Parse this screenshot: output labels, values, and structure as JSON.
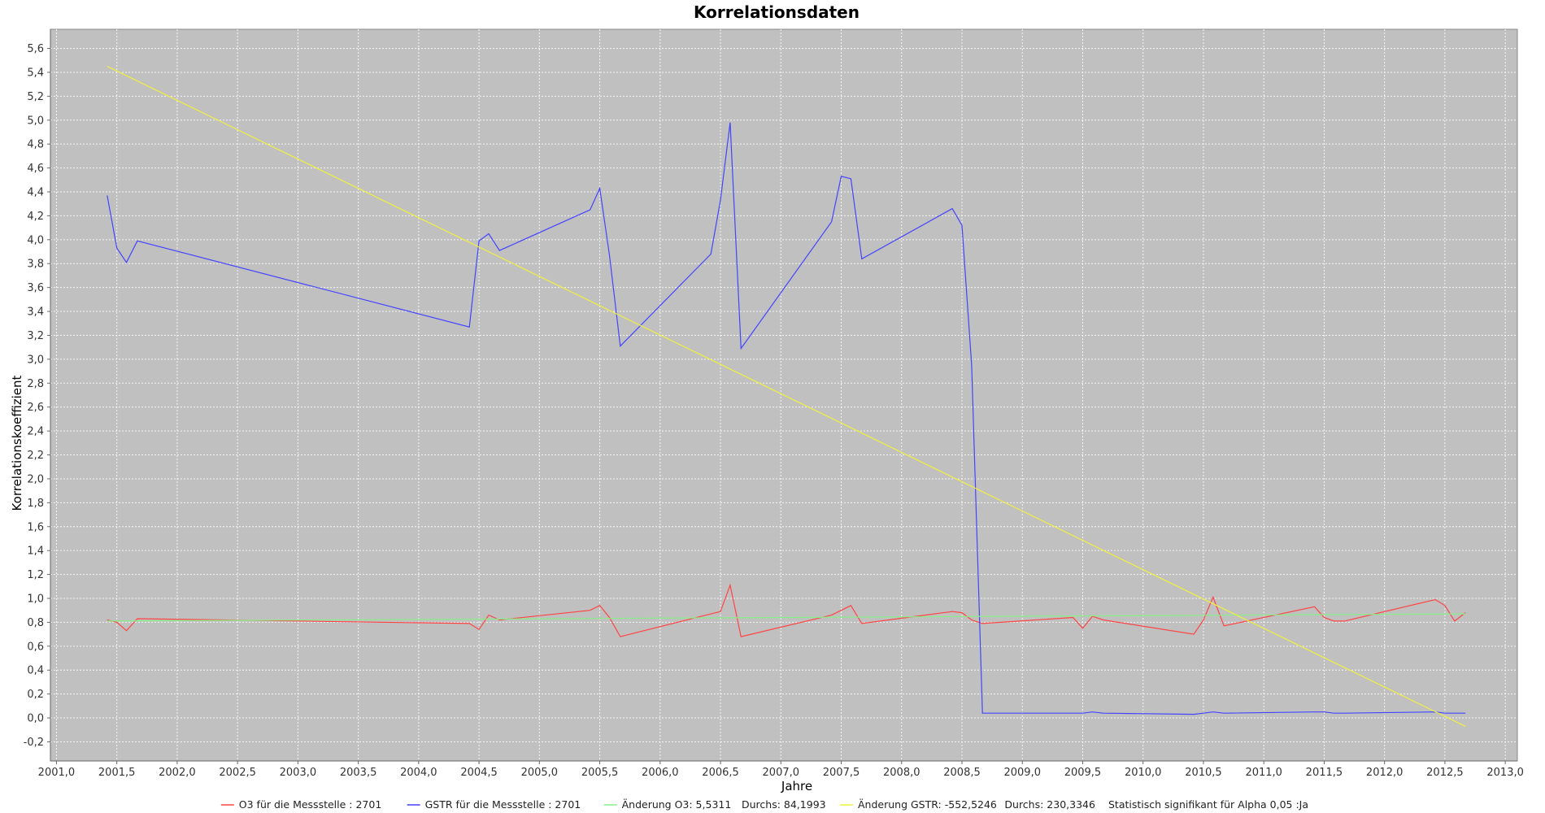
{
  "chart_data": {
    "type": "line",
    "title": "Korrelationsdaten",
    "xlabel": "Jahre",
    "ylabel": "Korrelationskoeffizient",
    "xlim": [
      2000.95,
      2013.1
    ],
    "ylim": [
      -0.36,
      5.76
    ],
    "x_ticks": [
      "2001,0",
      "2001,5",
      "2002,0",
      "2002,5",
      "2003,0",
      "2003,5",
      "2004,0",
      "2004,5",
      "2005,0",
      "2005,5",
      "2006,0",
      "2006,5",
      "2007,0",
      "2007,5",
      "2008,0",
      "2008,5",
      "2009,0",
      "2009,5",
      "2010,0",
      "2010,5",
      "2011,0",
      "2011,5",
      "2012,0",
      "2012,5",
      "2013,0"
    ],
    "y_ticks": [
      "-0,2",
      "0,0",
      "0,2",
      "0,4",
      "0,6",
      "0,8",
      "1,0",
      "1,2",
      "1,4",
      "1,6",
      "1,8",
      "2,0",
      "2,2",
      "2,4",
      "2,6",
      "2,8",
      "3,0",
      "3,2",
      "3,4",
      "3,6",
      "3,8",
      "4,0",
      "4,2",
      "4,4",
      "4,6",
      "4,8",
      "5,0",
      "5,2",
      "5,4",
      "5,6"
    ],
    "grid": true,
    "plot_background": "#c0c0c0",
    "series": [
      {
        "name": "O3 für die Messstelle : 2701",
        "color": "#ff4444",
        "points": [
          [
            2001.42,
            0.82
          ],
          [
            2001.5,
            0.8
          ],
          [
            2001.58,
            0.73
          ],
          [
            2001.67,
            0.83
          ],
          [
            2004.42,
            0.79
          ],
          [
            2004.5,
            0.74
          ],
          [
            2004.58,
            0.86
          ],
          [
            2004.67,
            0.82
          ],
          [
            2005.42,
            0.9
          ],
          [
            2005.5,
            0.94
          ],
          [
            2005.58,
            0.84
          ],
          [
            2005.67,
            0.68
          ],
          [
            2006.42,
            0.87
          ],
          [
            2006.5,
            0.89
          ],
          [
            2006.58,
            1.11
          ],
          [
            2006.67,
            0.68
          ],
          [
            2007.42,
            0.86
          ],
          [
            2007.5,
            0.9
          ],
          [
            2007.58,
            0.94
          ],
          [
            2007.67,
            0.79
          ],
          [
            2008.42,
            0.89
          ],
          [
            2008.5,
            0.88
          ],
          [
            2008.58,
            0.82
          ],
          [
            2008.67,
            0.79
          ],
          [
            2009.42,
            0.84
          ],
          [
            2009.5,
            0.75
          ],
          [
            2009.58,
            0.85
          ],
          [
            2009.67,
            0.82
          ],
          [
            2010.42,
            0.7
          ],
          [
            2010.5,
            0.82
          ],
          [
            2010.58,
            1.01
          ],
          [
            2010.67,
            0.77
          ],
          [
            2011.42,
            0.93
          ],
          [
            2011.5,
            0.84
          ],
          [
            2011.58,
            0.81
          ],
          [
            2011.67,
            0.81
          ],
          [
            2012.42,
            0.99
          ],
          [
            2012.5,
            0.94
          ],
          [
            2012.58,
            0.81
          ],
          [
            2012.67,
            0.88
          ]
        ]
      },
      {
        "name": "GSTR für die Messstelle : 2701",
        "color": "#4444ff",
        "points": [
          [
            2001.42,
            4.37
          ],
          [
            2001.5,
            3.93
          ],
          [
            2001.58,
            3.81
          ],
          [
            2001.67,
            3.99
          ],
          [
            2004.42,
            3.27
          ],
          [
            2004.5,
            3.99
          ],
          [
            2004.58,
            4.05
          ],
          [
            2004.67,
            3.91
          ],
          [
            2005.42,
            4.25
          ],
          [
            2005.5,
            4.43
          ],
          [
            2005.58,
            3.87
          ],
          [
            2005.67,
            3.11
          ],
          [
            2006.42,
            3.88
          ],
          [
            2006.5,
            4.33
          ],
          [
            2006.58,
            4.98
          ],
          [
            2006.67,
            3.09
          ],
          [
            2007.42,
            4.15
          ],
          [
            2007.5,
            4.53
          ],
          [
            2007.58,
            4.51
          ],
          [
            2007.67,
            3.84
          ],
          [
            2008.42,
            4.26
          ],
          [
            2008.5,
            4.12
          ],
          [
            2008.58,
            2.95
          ],
          [
            2008.67,
            0.04
          ],
          [
            2009.42,
            0.04
          ],
          [
            2009.5,
            0.04
          ],
          [
            2009.58,
            0.05
          ],
          [
            2009.67,
            0.04
          ],
          [
            2010.42,
            0.03
          ],
          [
            2010.5,
            0.04
          ],
          [
            2010.58,
            0.05
          ],
          [
            2010.67,
            0.04
          ],
          [
            2011.42,
            0.05
          ],
          [
            2011.5,
            0.05
          ],
          [
            2011.58,
            0.04
          ],
          [
            2011.67,
            0.04
          ],
          [
            2012.42,
            0.05
          ],
          [
            2012.5,
            0.04
          ],
          [
            2012.58,
            0.04
          ],
          [
            2012.67,
            0.04
          ]
        ]
      },
      {
        "name": "Änderung O3: 5,5311",
        "color": "#88ee88",
        "points": [
          [
            2001.42,
            0.81
          ],
          [
            2012.67,
            0.87
          ]
        ]
      },
      {
        "name": "Änderung GSTR: -552,5246",
        "color": "#f0f040",
        "points": [
          [
            2001.42,
            5.45
          ],
          [
            2012.67,
            -0.07
          ]
        ]
      }
    ],
    "legend": {
      "placement": "bottom",
      "items": [
        {
          "label": "O3 für die Messstelle : 2701",
          "color": "#ff4444"
        },
        {
          "label": "GSTR für die Messstelle : 2701",
          "color": "#4444ff"
        },
        {
          "label": "Änderung O3: 5,5311",
          "color": "#88ee88"
        },
        {
          "label": "Durchs: 84,1993",
          "color": ""
        },
        {
          "label": "Änderung GSTR: -552,5246",
          "color": "#f0f040"
        },
        {
          "label": "Durchs: 230,3346",
          "color": ""
        },
        {
          "label": "Statistisch signifikant für Alpha 0,05 :Ja",
          "color": ""
        }
      ]
    }
  }
}
